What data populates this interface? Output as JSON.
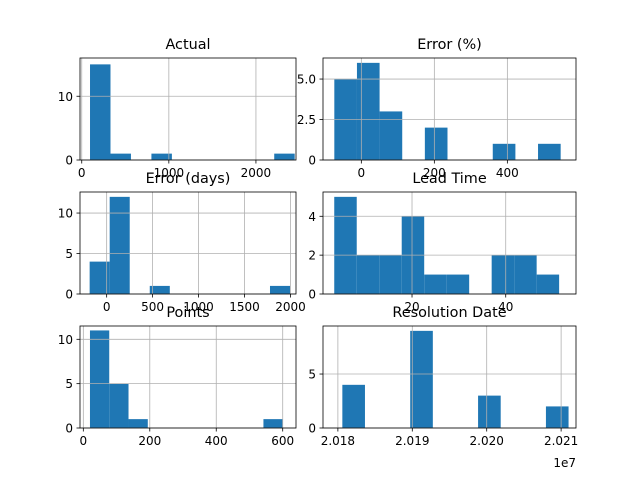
{
  "chart_data": [
    {
      "type": "bar",
      "title": "Actual",
      "xlim": [
        -20,
        2460
      ],
      "ylim": [
        0,
        16
      ],
      "xticks": [
        0,
        1000,
        2000
      ],
      "yticks": [
        0,
        10
      ],
      "bins": [
        {
          "x0": 95,
          "x1": 330,
          "count": 15
        },
        {
          "x0": 330,
          "x1": 565,
          "count": 1
        },
        {
          "x0": 565,
          "x1": 800,
          "count": 0
        },
        {
          "x0": 800,
          "x1": 1035,
          "count": 1
        },
        {
          "x0": 1035,
          "x1": 1270,
          "count": 0
        },
        {
          "x0": 1270,
          "x1": 1505,
          "count": 0
        },
        {
          "x0": 1505,
          "x1": 1740,
          "count": 0
        },
        {
          "x0": 1740,
          "x1": 1975,
          "count": 0
        },
        {
          "x0": 1975,
          "x1": 2210,
          "count": 0
        },
        {
          "x0": 2210,
          "x1": 2445,
          "count": 1
        }
      ]
    },
    {
      "type": "bar",
      "title": "Error (%)",
      "xlim": [
        -105,
        588
      ],
      "ylim": [
        0,
        6.3
      ],
      "xticks": [
        0,
        200,
        400
      ],
      "yticks": [
        0.0,
        2.5,
        5.0
      ],
      "ytick_labels": [
        "0",
        "2.5",
        "5.0"
      ],
      "bins": [
        {
          "x0": -74,
          "x1": -12,
          "count": 5
        },
        {
          "x0": -12,
          "x1": 50,
          "count": 6
        },
        {
          "x0": 50,
          "x1": 112,
          "count": 3
        },
        {
          "x0": 112,
          "x1": 174,
          "count": 0
        },
        {
          "x0": 174,
          "x1": 236,
          "count": 2
        },
        {
          "x0": 236,
          "x1": 298,
          "count": 0
        },
        {
          "x0": 298,
          "x1": 360,
          "count": 0
        },
        {
          "x0": 360,
          "x1": 422,
          "count": 1
        },
        {
          "x0": 422,
          "x1": 484,
          "count": 0
        },
        {
          "x0": 484,
          "x1": 546,
          "count": 1
        }
      ]
    },
    {
      "type": "bar",
      "title": "Error (days)",
      "xlim": [
        -290,
        2060
      ],
      "ylim": [
        0,
        12.6
      ],
      "xticks": [
        0,
        500,
        1000,
        1500,
        2000
      ],
      "yticks": [
        0,
        5,
        10
      ],
      "bins": [
        {
          "x0": -185,
          "x1": 33,
          "count": 4
        },
        {
          "x0": 33,
          "x1": 251,
          "count": 12
        },
        {
          "x0": 251,
          "x1": 469,
          "count": 0
        },
        {
          "x0": 469,
          "x1": 687,
          "count": 1
        },
        {
          "x0": 687,
          "x1": 905,
          "count": 0
        },
        {
          "x0": 905,
          "x1": 1123,
          "count": 0
        },
        {
          "x0": 1123,
          "x1": 1341,
          "count": 0
        },
        {
          "x0": 1341,
          "x1": 1559,
          "count": 0
        },
        {
          "x0": 1559,
          "x1": 1777,
          "count": 0
        },
        {
          "x0": 1777,
          "x1": 1995,
          "count": 1
        }
      ]
    },
    {
      "type": "bar",
      "title": "Lead Time",
      "xlim": [
        1,
        55
      ],
      "ylim": [
        0,
        5.25
      ],
      "xticks": [
        20,
        40
      ],
      "yticks": [
        0,
        2,
        4
      ],
      "bins": [
        {
          "x0": 3.4,
          "x1": 8.2,
          "count": 5
        },
        {
          "x0": 8.2,
          "x1": 13.0,
          "count": 2
        },
        {
          "x0": 13.0,
          "x1": 17.8,
          "count": 2
        },
        {
          "x0": 17.8,
          "x1": 22.6,
          "count": 4
        },
        {
          "x0": 22.6,
          "x1": 27.4,
          "count": 1
        },
        {
          "x0": 27.4,
          "x1": 32.2,
          "count": 1
        },
        {
          "x0": 32.2,
          "x1": 37.0,
          "count": 0
        },
        {
          "x0": 37.0,
          "x1": 41.8,
          "count": 2
        },
        {
          "x0": 41.8,
          "x1": 46.6,
          "count": 2
        },
        {
          "x0": 46.6,
          "x1": 51.4,
          "count": 1
        }
      ]
    },
    {
      "type": "bar",
      "title": "Points",
      "xlim": [
        -10,
        640
      ],
      "ylim": [
        0,
        11.5
      ],
      "xticks": [
        0,
        200,
        400,
        600
      ],
      "yticks": [
        0,
        5,
        10
      ],
      "bins": [
        {
          "x0": 20,
          "x1": 78,
          "count": 11
        },
        {
          "x0": 78,
          "x1": 136,
          "count": 5
        },
        {
          "x0": 136,
          "x1": 194,
          "count": 1
        },
        {
          "x0": 194,
          "x1": 252,
          "count": 0
        },
        {
          "x0": 252,
          "x1": 310,
          "count": 0
        },
        {
          "x0": 310,
          "x1": 368,
          "count": 0
        },
        {
          "x0": 368,
          "x1": 426,
          "count": 0
        },
        {
          "x0": 426,
          "x1": 484,
          "count": 0
        },
        {
          "x0": 484,
          "x1": 542,
          "count": 0
        },
        {
          "x0": 542,
          "x1": 600,
          "count": 1
        }
      ]
    },
    {
      "type": "bar",
      "title": "Resolution Date",
      "xlim": [
        20178000,
        20212000
      ],
      "ylim": [
        0,
        9.45
      ],
      "xticks": [
        20180000,
        20190000,
        20200000,
        20210000
      ],
      "xtick_labels": [
        "2.018",
        "2.019",
        "2.020",
        "2.021"
      ],
      "offset_label": "1e7",
      "yticks": [
        0,
        5
      ],
      "bins": [
        {
          "x0": 20180600,
          "x1": 20183640,
          "count": 4
        },
        {
          "x0": 20183640,
          "x1": 20186680,
          "count": 0
        },
        {
          "x0": 20186680,
          "x1": 20189720,
          "count": 0
        },
        {
          "x0": 20189720,
          "x1": 20192760,
          "count": 9
        },
        {
          "x0": 20192760,
          "x1": 20195800,
          "count": 0
        },
        {
          "x0": 20195800,
          "x1": 20198840,
          "count": 0
        },
        {
          "x0": 20198840,
          "x1": 20201880,
          "count": 3
        },
        {
          "x0": 20201880,
          "x1": 20204920,
          "count": 0
        },
        {
          "x0": 20204920,
          "x1": 20207960,
          "count": 0
        },
        {
          "x0": 20207960,
          "x1": 20211000,
          "count": 2
        }
      ]
    }
  ],
  "colors": {
    "bar": "#1f77b4",
    "grid": "#b0b0b0",
    "axis": "#000000"
  }
}
